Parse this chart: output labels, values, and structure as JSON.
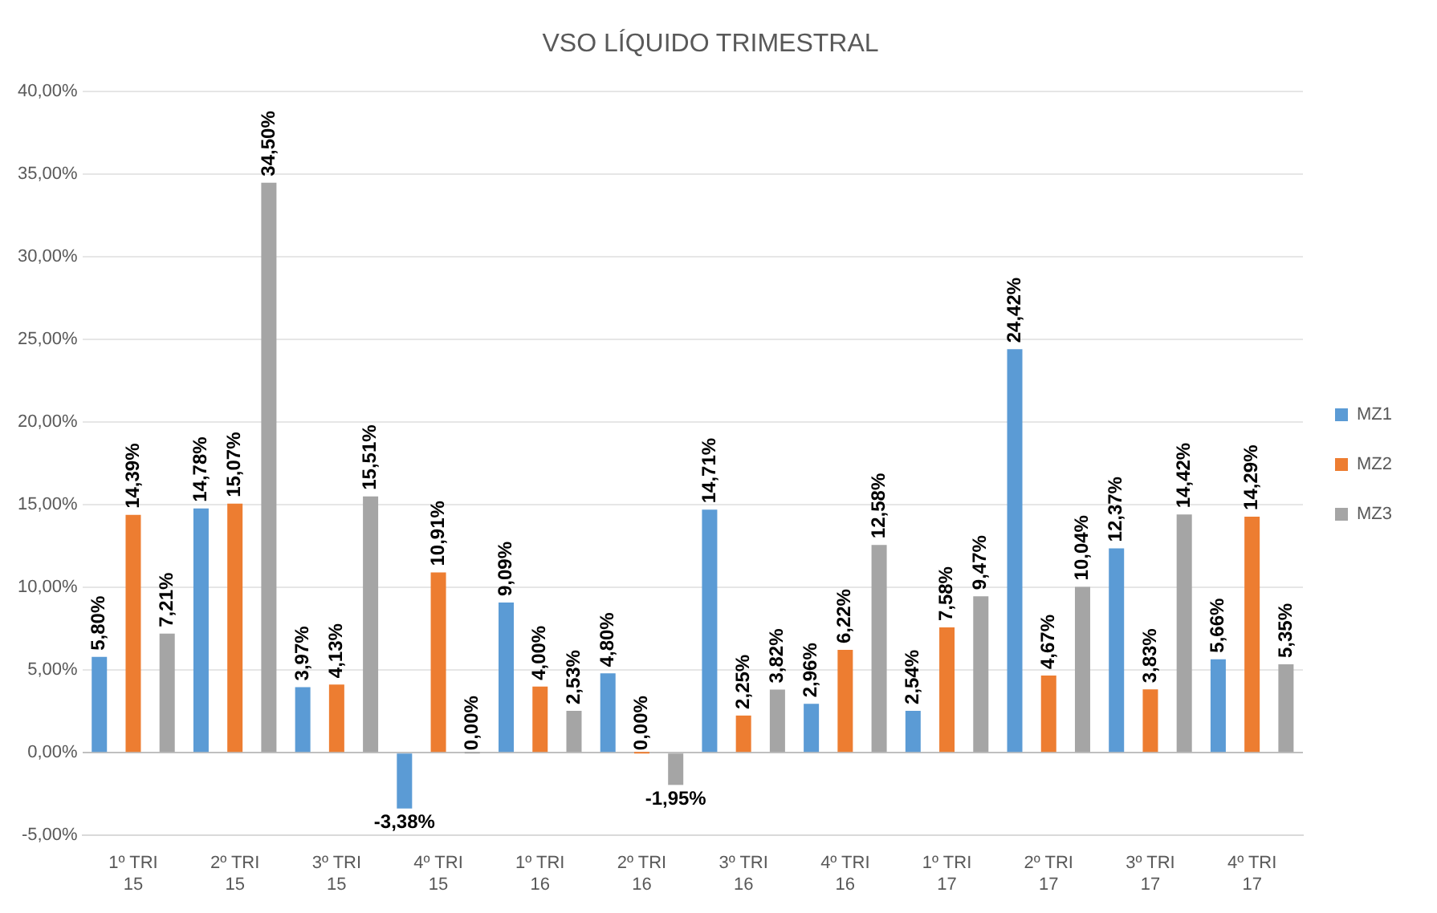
{
  "chart_data": {
    "type": "bar",
    "title": "VSO LÍQUIDO TRIMESTRAL",
    "categories": [
      "1º TRI 15",
      "2º TRI 15",
      "3º TRI 15",
      "4º TRI 15",
      "1º TRI 16",
      "2º TRI 16",
      "3º TRI 16",
      "4º TRI 16",
      "1º TRI 17",
      "2º TRI 17",
      "3º TRI 17",
      "4º TRI 17"
    ],
    "series": [
      {
        "name": "MZ1",
        "color": "#5b9bd5",
        "values": [
          5.8,
          14.78,
          3.97,
          -3.38,
          9.09,
          4.8,
          14.71,
          2.96,
          2.54,
          24.42,
          12.37,
          5.66
        ],
        "value_labels": [
          "5,80%",
          "14,78%",
          "3,97%",
          "-3,38%",
          "9,09%",
          "4,80%",
          "14,71%",
          "2,96%",
          "2,54%",
          "24,42%",
          "12,37%",
          "5,66%"
        ]
      },
      {
        "name": "MZ2",
        "color": "#ed7d31",
        "values": [
          14.39,
          15.07,
          4.13,
          10.91,
          4.0,
          0.0,
          2.25,
          6.22,
          7.58,
          4.67,
          3.83,
          14.29
        ],
        "value_labels": [
          "14,39%",
          "15,07%",
          "4,13%",
          "10,91%",
          "4,00%",
          "0,00%",
          "2,25%",
          "6,22%",
          "7,58%",
          "4,67%",
          "3,83%",
          "14,29%"
        ]
      },
      {
        "name": "MZ3",
        "color": "#a5a5a5",
        "values": [
          7.21,
          34.5,
          15.51,
          0.0,
          2.53,
          -1.95,
          3.82,
          12.58,
          9.47,
          10.04,
          14.42,
          5.35
        ],
        "value_labels": [
          "7,21%",
          "34,50%",
          "15,51%",
          "0,00%",
          "2,53%",
          "-1,95%",
          "3,82%",
          "12,58%",
          "9,47%",
          "10,04%",
          "14,42%",
          "5,35%"
        ]
      }
    ],
    "ylim": [
      -5,
      40
    ],
    "yticks": [
      {
        "value": -5,
        "label": "-5,00%"
      },
      {
        "value": 0,
        "label": "0,00%"
      },
      {
        "value": 5,
        "label": "5,00%"
      },
      {
        "value": 10,
        "label": "10,00%"
      },
      {
        "value": 15,
        "label": "15,00%"
      },
      {
        "value": 20,
        "label": "20,00%"
      },
      {
        "value": 25,
        "label": "25,00%"
      },
      {
        "value": 30,
        "label": "30,00%"
      },
      {
        "value": 35,
        "label": "35,00%"
      },
      {
        "value": 40,
        "label": "40,00%"
      }
    ],
    "grid": "y",
    "legend": "right"
  }
}
